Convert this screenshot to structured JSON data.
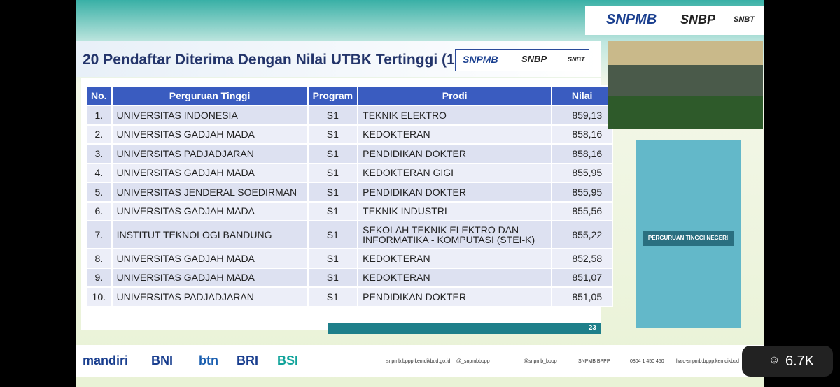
{
  "header": {
    "logo": "SNPMB",
    "logo2": "SNBP",
    "logo3": "SNBT"
  },
  "slide": {
    "title": "20 Pendaftar Diterima Dengan Nilai UTBK Tertinggi (1)",
    "page": "23",
    "building_sign": "PERGURUAN TINGGI NEGERI"
  },
  "table": {
    "columns": [
      "No.",
      "Perguruan Tinggi",
      "Program",
      "Prodi",
      "Nilai"
    ],
    "rows": [
      [
        "1.",
        "UNIVERSITAS INDONESIA",
        "S1",
        "TEKNIK ELEKTRO",
        "859,13"
      ],
      [
        "2.",
        "UNIVERSITAS GADJAH MADA",
        "S1",
        "KEDOKTERAN",
        "858,16"
      ],
      [
        "3.",
        "UNIVERSITAS PADJADJARAN",
        "S1",
        "PENDIDIKAN DOKTER",
        "858,16"
      ],
      [
        "4.",
        "UNIVERSITAS GADJAH MADA",
        "S1",
        "KEDOKTERAN GIGI",
        "855,95"
      ],
      [
        "5.",
        "UNIVERSITAS JENDERAL SOEDIRMAN",
        "S1",
        "PENDIDIKAN DOKTER",
        "855,95"
      ],
      [
        "6.",
        "UNIVERSITAS GADJAH MADA",
        "S1",
        "TEKNIK INDUSTRI",
        "855,56"
      ],
      [
        "7.",
        "INSTITUT TEKNOLOGI BANDUNG",
        "S1",
        "SEKOLAH TEKNIK ELEKTRO DAN INFORMATIKA - KOMPUTASI (STEI-K)",
        "855,22"
      ],
      [
        "8.",
        "UNIVERSITAS GADJAH MADA",
        "S1",
        "KEDOKTERAN",
        "852,58"
      ],
      [
        "9.",
        "UNIVERSITAS GADJAH MADA",
        "S1",
        "KEDOKTERAN",
        "851,07"
      ],
      [
        "10.",
        "UNIVERSITAS PADJADJARAN",
        "S1",
        "PENDIDIKAN DOKTER",
        "851,05"
      ]
    ]
  },
  "sponsors": [
    "mandiri",
    "BNI",
    "btn",
    "BRI",
    "BSI"
  ],
  "contacts": [
    "snpmb.bppp.kemdikbud.go.id",
    "@_snpmbbppp",
    "@snpmb_bppp",
    "SNPMB BPPP",
    "0804 1 450 450",
    "halo-snpmb.bppp.kemdikbud"
  ],
  "viewers": "6.7K"
}
